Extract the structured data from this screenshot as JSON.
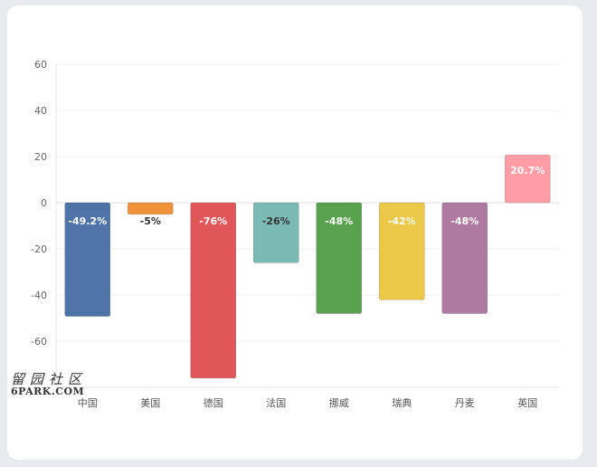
{
  "chart_data": {
    "type": "bar",
    "title": "",
    "xlabel": "",
    "ylabel": "",
    "ylim": [
      -80,
      60
    ],
    "yticks": [
      60,
      40,
      20,
      0,
      -20,
      -40,
      -60
    ],
    "categories": [
      "中国",
      "美国",
      "德国",
      "法国",
      "挪威",
      "瑞典",
      "丹麦",
      "英国"
    ],
    "values": [
      -49.2,
      -5,
      -76,
      -26,
      -48,
      -42,
      -48,
      20.7
    ],
    "labels": [
      "-49.2%",
      "-5%",
      "-76%",
      "-26%",
      "-48%",
      "-42%",
      "-48%",
      "20.7%"
    ],
    "colors": [
      "#4e73a6",
      "#f0923a",
      "#e15759",
      "#7bbab3",
      "#59a14f",
      "#edc949",
      "#af7aa1",
      "#ff9da7"
    ],
    "label_colors": [
      "#ffffff",
      "#333333",
      "#ffffff",
      "#333333",
      "#ffffff",
      "#ffffff",
      "#ffffff",
      "#ffffff"
    ],
    "grid": true
  },
  "watermark": {
    "line1": "留园社区",
    "line2": "6PARK.COM"
  }
}
